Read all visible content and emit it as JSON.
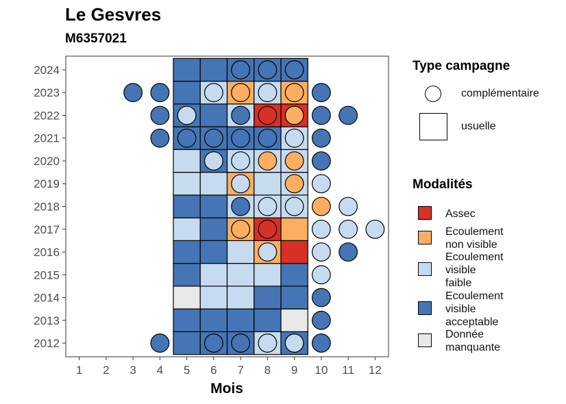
{
  "title": "Le Gesvres",
  "subtitle": "M6357021",
  "chart_data": {
    "type": "heatmap",
    "xlabel": "Mois",
    "ylabel": "",
    "x_ticks": [
      "1",
      "2",
      "3",
      "4",
      "5",
      "6",
      "7",
      "8",
      "9",
      "10",
      "11",
      "12"
    ],
    "y_ticks": [
      "2012",
      "2013",
      "2014",
      "2015",
      "2016",
      "2017",
      "2018",
      "2019",
      "2020",
      "2021",
      "2022",
      "2023",
      "2024"
    ],
    "xlim": [
      0.5,
      12.5
    ],
    "ylim": [
      2011.4,
      2024.6
    ],
    "grid": false,
    "colors": {
      "assec": "#D73027",
      "ecoulement_non_visible": "#FDAE61",
      "ecoulement_visible_faible": "#C6DBEF",
      "ecoulement_visible_acceptable": "#4575B4",
      "donnee_manquante": "#E8E8E8"
    },
    "usuelle": [
      {
        "year": 2012,
        "month": 5,
        "mod": "ecoulement_visible_acceptable"
      },
      {
        "year": 2012,
        "month": 6,
        "mod": "ecoulement_visible_acceptable"
      },
      {
        "year": 2012,
        "month": 7,
        "mod": "ecoulement_visible_acceptable"
      },
      {
        "year": 2012,
        "month": 8,
        "mod": "ecoulement_visible_faible"
      },
      {
        "year": 2012,
        "month": 9,
        "mod": "ecoulement_visible_acceptable"
      },
      {
        "year": 2013,
        "month": 5,
        "mod": "ecoulement_visible_acceptable"
      },
      {
        "year": 2013,
        "month": 6,
        "mod": "ecoulement_visible_acceptable"
      },
      {
        "year": 2013,
        "month": 7,
        "mod": "ecoulement_visible_acceptable"
      },
      {
        "year": 2013,
        "month": 8,
        "mod": "ecoulement_visible_acceptable"
      },
      {
        "year": 2013,
        "month": 9,
        "mod": "donnee_manquante"
      },
      {
        "year": 2014,
        "month": 5,
        "mod": "donnee_manquante"
      },
      {
        "year": 2014,
        "month": 6,
        "mod": "ecoulement_visible_faible"
      },
      {
        "year": 2014,
        "month": 7,
        "mod": "ecoulement_visible_faible"
      },
      {
        "year": 2014,
        "month": 8,
        "mod": "ecoulement_visible_acceptable"
      },
      {
        "year": 2014,
        "month": 9,
        "mod": "ecoulement_visible_acceptable"
      },
      {
        "year": 2015,
        "month": 5,
        "mod": "ecoulement_visible_acceptable"
      },
      {
        "year": 2015,
        "month": 6,
        "mod": "ecoulement_visible_faible"
      },
      {
        "year": 2015,
        "month": 7,
        "mod": "ecoulement_visible_faible"
      },
      {
        "year": 2015,
        "month": 8,
        "mod": "ecoulement_visible_faible"
      },
      {
        "year": 2015,
        "month": 9,
        "mod": "ecoulement_visible_acceptable"
      },
      {
        "year": 2016,
        "month": 5,
        "mod": "ecoulement_visible_acceptable"
      },
      {
        "year": 2016,
        "month": 6,
        "mod": "ecoulement_visible_acceptable"
      },
      {
        "year": 2016,
        "month": 7,
        "mod": "ecoulement_visible_faible"
      },
      {
        "year": 2016,
        "month": 8,
        "mod": "ecoulement_non_visible"
      },
      {
        "year": 2016,
        "month": 9,
        "mod": "assec"
      },
      {
        "year": 2017,
        "month": 5,
        "mod": "ecoulement_visible_faible"
      },
      {
        "year": 2017,
        "month": 6,
        "mod": "ecoulement_visible_acceptable"
      },
      {
        "year": 2017,
        "month": 7,
        "mod": "ecoulement_non_visible"
      },
      {
        "year": 2017,
        "month": 8,
        "mod": "assec"
      },
      {
        "year": 2017,
        "month": 9,
        "mod": "ecoulement_non_visible"
      },
      {
        "year": 2018,
        "month": 5,
        "mod": "ecoulement_visible_acceptable"
      },
      {
        "year": 2018,
        "month": 6,
        "mod": "ecoulement_visible_acceptable"
      },
      {
        "year": 2018,
        "month": 7,
        "mod": "ecoulement_visible_faible"
      },
      {
        "year": 2018,
        "month": 8,
        "mod": "ecoulement_visible_faible"
      },
      {
        "year": 2018,
        "month": 9,
        "mod": "ecoulement_visible_faible"
      },
      {
        "year": 2019,
        "month": 5,
        "mod": "ecoulement_visible_faible"
      },
      {
        "year": 2019,
        "month": 6,
        "mod": "ecoulement_visible_faible"
      },
      {
        "year": 2019,
        "month": 7,
        "mod": "ecoulement_non_visible"
      },
      {
        "year": 2019,
        "month": 8,
        "mod": "ecoulement_visible_faible"
      },
      {
        "year": 2019,
        "month": 9,
        "mod": "ecoulement_visible_faible"
      },
      {
        "year": 2020,
        "month": 5,
        "mod": "ecoulement_visible_faible"
      },
      {
        "year": 2020,
        "month": 6,
        "mod": "ecoulement_visible_acceptable"
      },
      {
        "year": 2020,
        "month": 7,
        "mod": "ecoulement_visible_faible"
      },
      {
        "year": 2020,
        "month": 8,
        "mod": "ecoulement_visible_faible"
      },
      {
        "year": 2020,
        "month": 9,
        "mod": "ecoulement_visible_faible"
      },
      {
        "year": 2021,
        "month": 5,
        "mod": "ecoulement_visible_acceptable"
      },
      {
        "year": 2021,
        "month": 6,
        "mod": "ecoulement_visible_acceptable"
      },
      {
        "year": 2021,
        "month": 7,
        "mod": "ecoulement_visible_acceptable"
      },
      {
        "year": 2021,
        "month": 8,
        "mod": "ecoulement_visible_acceptable"
      },
      {
        "year": 2021,
        "month": 9,
        "mod": "ecoulement_visible_faible"
      },
      {
        "year": 2022,
        "month": 5,
        "mod": "ecoulement_visible_acceptable"
      },
      {
        "year": 2022,
        "month": 6,
        "mod": "ecoulement_visible_acceptable"
      },
      {
        "year": 2022,
        "month": 7,
        "mod": "ecoulement_visible_faible"
      },
      {
        "year": 2022,
        "month": 8,
        "mod": "assec"
      },
      {
        "year": 2022,
        "month": 9,
        "mod": "assec"
      },
      {
        "year": 2023,
        "month": 5,
        "mod": "ecoulement_visible_acceptable"
      },
      {
        "year": 2023,
        "month": 6,
        "mod": "ecoulement_visible_faible"
      },
      {
        "year": 2023,
        "month": 7,
        "mod": "ecoulement_non_visible"
      },
      {
        "year": 2023,
        "month": 8,
        "mod": "ecoulement_visible_faible"
      },
      {
        "year": 2023,
        "month": 9,
        "mod": "ecoulement_non_visible"
      },
      {
        "year": 2024,
        "month": 5,
        "mod": "ecoulement_visible_acceptable"
      },
      {
        "year": 2024,
        "month": 6,
        "mod": "ecoulement_visible_acceptable"
      },
      {
        "year": 2024,
        "month": 7,
        "mod": "ecoulement_visible_acceptable"
      },
      {
        "year": 2024,
        "month": 8,
        "mod": "ecoulement_visible_acceptable"
      },
      {
        "year": 2024,
        "month": 9,
        "mod": "ecoulement_visible_acceptable"
      }
    ],
    "complementaire": [
      {
        "year": 2012,
        "month": 4,
        "mod": "ecoulement_visible_acceptable"
      },
      {
        "year": 2012,
        "month": 6,
        "mod": "ecoulement_visible_acceptable"
      },
      {
        "year": 2012,
        "month": 7,
        "mod": "ecoulement_visible_acceptable"
      },
      {
        "year": 2012,
        "month": 8,
        "mod": "ecoulement_visible_faible"
      },
      {
        "year": 2012,
        "month": 9,
        "mod": "ecoulement_visible_faible"
      },
      {
        "year": 2012,
        "month": 10,
        "mod": "ecoulement_visible_acceptable"
      },
      {
        "year": 2013,
        "month": 10,
        "mod": "ecoulement_visible_acceptable"
      },
      {
        "year": 2014,
        "month": 10,
        "mod": "ecoulement_visible_acceptable"
      },
      {
        "year": 2015,
        "month": 10,
        "mod": "ecoulement_visible_faible"
      },
      {
        "year": 2016,
        "month": 8,
        "mod": "ecoulement_visible_faible"
      },
      {
        "year": 2016,
        "month": 10,
        "mod": "ecoulement_visible_faible"
      },
      {
        "year": 2016,
        "month": 11,
        "mod": "ecoulement_visible_acceptable"
      },
      {
        "year": 2017,
        "month": 7,
        "mod": "ecoulement_non_visible"
      },
      {
        "year": 2017,
        "month": 8,
        "mod": "assec"
      },
      {
        "year": 2017,
        "month": 10,
        "mod": "ecoulement_visible_faible"
      },
      {
        "year": 2017,
        "month": 11,
        "mod": "ecoulement_visible_faible"
      },
      {
        "year": 2017,
        "month": 12,
        "mod": "ecoulement_visible_faible"
      },
      {
        "year": 2018,
        "month": 7,
        "mod": "ecoulement_visible_acceptable"
      },
      {
        "year": 2018,
        "month": 8,
        "mod": "ecoulement_visible_faible"
      },
      {
        "year": 2018,
        "month": 9,
        "mod": "ecoulement_visible_faible"
      },
      {
        "year": 2018,
        "month": 10,
        "mod": "ecoulement_non_visible"
      },
      {
        "year": 2018,
        "month": 11,
        "mod": "ecoulement_visible_faible"
      },
      {
        "year": 2019,
        "month": 7,
        "mod": "ecoulement_visible_faible"
      },
      {
        "year": 2019,
        "month": 9,
        "mod": "ecoulement_non_visible"
      },
      {
        "year": 2019,
        "month": 10,
        "mod": "ecoulement_visible_faible"
      },
      {
        "year": 2020,
        "month": 6,
        "mod": "ecoulement_visible_faible"
      },
      {
        "year": 2020,
        "month": 7,
        "mod": "ecoulement_visible_faible"
      },
      {
        "year": 2020,
        "month": 8,
        "mod": "ecoulement_non_visible"
      },
      {
        "year": 2020,
        "month": 9,
        "mod": "ecoulement_non_visible"
      },
      {
        "year": 2020,
        "month": 10,
        "mod": "ecoulement_visible_acceptable"
      },
      {
        "year": 2021,
        "month": 4,
        "mod": "ecoulement_visible_acceptable"
      },
      {
        "year": 2021,
        "month": 5,
        "mod": "ecoulement_visible_acceptable"
      },
      {
        "year": 2021,
        "month": 6,
        "mod": "ecoulement_visible_acceptable"
      },
      {
        "year": 2021,
        "month": 7,
        "mod": "ecoulement_visible_acceptable"
      },
      {
        "year": 2021,
        "month": 8,
        "mod": "ecoulement_visible_acceptable"
      },
      {
        "year": 2021,
        "month": 9,
        "mod": "ecoulement_visible_faible"
      },
      {
        "year": 2021,
        "month": 10,
        "mod": "ecoulement_visible_acceptable"
      },
      {
        "year": 2022,
        "month": 4,
        "mod": "ecoulement_visible_acceptable"
      },
      {
        "year": 2022,
        "month": 5,
        "mod": "ecoulement_visible_faible"
      },
      {
        "year": 2022,
        "month": 7,
        "mod": "ecoulement_visible_acceptable"
      },
      {
        "year": 2022,
        "month": 8,
        "mod": "assec"
      },
      {
        "year": 2022,
        "month": 9,
        "mod": "ecoulement_non_visible"
      },
      {
        "year": 2022,
        "month": 10,
        "mod": "ecoulement_visible_acceptable"
      },
      {
        "year": 2022,
        "month": 11,
        "mod": "ecoulement_visible_acceptable"
      },
      {
        "year": 2023,
        "month": 3,
        "mod": "ecoulement_visible_acceptable"
      },
      {
        "year": 2023,
        "month": 4,
        "mod": "ecoulement_visible_acceptable"
      },
      {
        "year": 2023,
        "month": 6,
        "mod": "ecoulement_visible_faible"
      },
      {
        "year": 2023,
        "month": 7,
        "mod": "ecoulement_non_visible"
      },
      {
        "year": 2023,
        "month": 8,
        "mod": "ecoulement_visible_faible"
      },
      {
        "year": 2023,
        "month": 9,
        "mod": "ecoulement_non_visible"
      },
      {
        "year": 2023,
        "month": 10,
        "mod": "ecoulement_visible_acceptable"
      },
      {
        "year": 2024,
        "month": 7,
        "mod": "ecoulement_visible_acceptable"
      },
      {
        "year": 2024,
        "month": 8,
        "mod": "ecoulement_visible_acceptable"
      },
      {
        "year": 2024,
        "month": 9,
        "mod": "ecoulement_visible_acceptable"
      }
    ]
  },
  "legend": {
    "type_title": "Type campagne",
    "type_items": [
      {
        "label": "complémentaire",
        "shape": "circle"
      },
      {
        "label": "usuelle",
        "shape": "square"
      }
    ],
    "mod_title": "Modalités",
    "mod_items": [
      {
        "lines": [
          "Assec"
        ],
        "key": "assec"
      },
      {
        "lines": [
          "Ecoulement",
          "non visible"
        ],
        "key": "ecoulement_non_visible"
      },
      {
        "lines": [
          "Ecoulement",
          "visible",
          "faible"
        ],
        "key": "ecoulement_visible_faible"
      },
      {
        "lines": [
          "Ecoulement",
          "visible",
          "acceptable"
        ],
        "key": "ecoulement_visible_acceptable"
      },
      {
        "lines": [
          "Donnée",
          "manquante"
        ],
        "key": "donnee_manquante"
      }
    ]
  }
}
